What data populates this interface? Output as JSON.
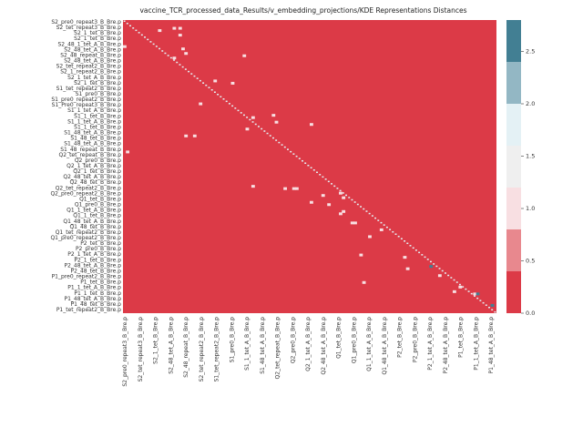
{
  "chart_data": {
    "type": "heatmap",
    "title": "vaccine_TCR_processed_data_Results/v_embedding_projections/KDE Representations Distances",
    "n": 100,
    "row_labels_visible": [
      "S2_pre0_repeat3_B_Bre.p",
      "S2_tet_repeat3_B_Bre.p",
      "S2_1_tet_B_Bre.p",
      "S2_1_tet_B_Bre.p",
      "S2_48_1_tet_A_B_Bre.p",
      "S2_48_tet_A_B_Bre.p",
      "S2_48_repeat_B_Bre.p",
      "S2_48_tet_A_B_Bre.p",
      "S2_tet_repeat2_B_Bre.p",
      "S2_1_repeat2_B_Bre.p",
      "S2_1_tet_A_B_Bre.p",
      "S2_1_tet_B_Bre.p",
      "S1_tet_repeat2_B_Bre.p",
      "S1_pre0_B_Bre.p",
      "S1_pre0_repeat2_B_Bre.p",
      "S1_Pre0_repeat3_B_Bre.p",
      "S1_1_tet_A_B_Bre.p",
      "S1_1_tet_B_Bre.p",
      "S1_1_tet_A_B_Bre.p",
      "S1_1_tet_B_Bre.p",
      "S1_48_tet_A_B_Bre.p",
      "S1_48_tet_B_Bre.p",
      "S1_48_tet_A_B_Bre.p",
      "S1_48_repeat_B_Bre.p",
      "Q2_tet_repeat_B_Bre.p",
      "Q2_pre0_B_Bre.p",
      "Q2_1_tet_A_B_Bre.p",
      "Q2_1_tet_B_Bre.p",
      "Q2_48_tet_A_B_Bre.p",
      "Q2_48_tet_B_Bre.p",
      "Q2_tet_repeat2_B_Bre.p",
      "Q2_pre0_repeat2_B_Bre.p",
      "Q1_tet_B_Bre.p",
      "Q1_pre0_B_Bre.p",
      "Q1_1_tet_A_B_Bre.p",
      "Q1_1_tet_B_Bre.p",
      "Q1_48_tet_A_B_Bre.p",
      "Q1_48_tet_B_Bre.p",
      "Q1_tet_repeat2_B_Bre.p",
      "Q1_pre0_repeat2_B_Bre.p",
      "P2_tet_B_Bre.p",
      "P2_pre0_B_Bre.p",
      "P2_1_tet_A_B_Bre.p",
      "P2_1_tet_B_Bre.p",
      "P2_48_tet_A_B_Bre.p",
      "P2_48_tet_B_Bre.p",
      "P1_pre0_repeat2_B_Bre.p",
      "P1_tet_B_Bre.p",
      "P1_1_tet_A_B_Bre.p",
      "P1_1_tet_B_Bre.p",
      "P1_48_tet_A_B_Bre.p",
      "P1_48_tet_B_Bre.p",
      "P1_tet_repeat2_B_Bre.p"
    ],
    "column_labels_visible": [
      "S2_pre0_repeat3_B_Bre.p",
      "S2_tet_repeat3_B_Bre.p",
      "S2_1_tet_B_Bre.p",
      "S2_48_tet_A_B_Bre.p",
      "S2_48_repeat_B_Bre.p",
      "S2_tet_repeat2_B_Bre.p",
      "S1_tet_repeat2_B_Bre.p",
      "S1_pre0_B_Bre.p",
      "S1_1_tet_A_B_Bre.p",
      "S1_48_tet_A_B_Bre.p",
      "Q2_tet_repeat_B_Bre.p",
      "Q2_pre0_B_Bre.p",
      "Q2_1_tet_A_B_Bre.p",
      "Q2_48_tet_A_B_Bre.p",
      "Q1_tet_B_Bre.p",
      "Q1_pre0_B_Bre.p",
      "Q1_1_tet_A_B_Bre.p",
      "Q1_48_tet_A_B_Bre.p",
      "P2_tet_B_Bre.p",
      "P2_pre0_B_Bre.p",
      "P2_1_tet_A_B_Bre.p",
      "P2_48_tet_A_B_Bre.p",
      "P1_tet_B_Bre.p",
      "P1_1_tet_A_B_Bre.p",
      "P1_48_tet_A_B_Bre.p"
    ],
    "base_value": 0.1,
    "diagonal_value": 1.7,
    "highlights": [
      {
        "row": 3,
        "col": 17,
        "value": 0.8
      },
      {
        "row": 3,
        "col": 19,
        "value": 0.8
      },
      {
        "row": 4,
        "col": 12,
        "value": 0.8
      },
      {
        "row": 6,
        "col": 19,
        "value": 0.8
      },
      {
        "row": 11,
        "col": 0,
        "value": 0.8
      },
      {
        "row": 12,
        "col": 20,
        "value": 0.8
      },
      {
        "row": 14,
        "col": 21,
        "value": 0.8
      },
      {
        "row": 16,
        "col": 17,
        "value": 0.8
      },
      {
        "row": 15,
        "col": 41,
        "value": 0.8
      },
      {
        "row": 26,
        "col": 31,
        "value": 0.8
      },
      {
        "row": 27,
        "col": 37,
        "value": 0.8
      },
      {
        "row": 36,
        "col": 26,
        "value": 0.8
      },
      {
        "row": 41,
        "col": 51,
        "value": 0.8
      },
      {
        "row": 42,
        "col": 44,
        "value": 0.8
      },
      {
        "row": 44,
        "col": 52,
        "value": 0.8
      },
      {
        "row": 45,
        "col": 64,
        "value": 0.8
      },
      {
        "row": 47,
        "col": 42,
        "value": 0.8
      },
      {
        "row": 50,
        "col": 24,
        "value": 0.8
      },
      {
        "row": 50,
        "col": 21,
        "value": 0.8
      },
      {
        "row": 57,
        "col": 1,
        "value": 0.8
      },
      {
        "row": 72,
        "col": 44,
        "value": 0.8
      },
      {
        "row": 73,
        "col": 55,
        "value": 0.8
      },
      {
        "row": 73,
        "col": 58,
        "value": 0.8
      },
      {
        "row": 73,
        "col": 59,
        "value": 0.8
      },
      {
        "row": 75,
        "col": 74,
        "value": 0.8
      },
      {
        "row": 76,
        "col": 68,
        "value": 0.8
      },
      {
        "row": 77,
        "col": 75,
        "value": 0.8
      },
      {
        "row": 79,
        "col": 64,
        "value": 0.8
      },
      {
        "row": 80,
        "col": 70,
        "value": 0.8
      },
      {
        "row": 83,
        "col": 75,
        "value": 0.8
      },
      {
        "row": 84,
        "col": 74,
        "value": 0.8
      },
      {
        "row": 88,
        "col": 78,
        "value": 0.8
      },
      {
        "row": 88,
        "col": 79,
        "value": 0.8
      },
      {
        "row": 91,
        "col": 88,
        "value": 0.8
      },
      {
        "row": 94,
        "col": 84,
        "value": 0.8
      },
      {
        "row": 102,
        "col": 81,
        "value": 0.8
      },
      {
        "row": 103,
        "col": 96,
        "value": 0.8
      },
      {
        "row": 108,
        "col": 97,
        "value": 0.8
      },
      {
        "row": 111,
        "col": 108,
        "value": 0.8
      },
      {
        "row": 114,
        "col": 82,
        "value": 0.8
      },
      {
        "row": 116,
        "col": 115,
        "value": 0.8
      },
      {
        "row": 118,
        "col": 113,
        "value": 0.8
      },
      {
        "row": 119,
        "col": 120,
        "value": 0.8
      },
      {
        "row": 107,
        "col": 105,
        "value": 2.4
      },
      {
        "row": 119,
        "col": 121,
        "value": 2.4
      },
      {
        "row": 124,
        "col": 126,
        "value": 2.4
      }
    ],
    "color_boundaries": [
      0.0,
      0.4,
      0.8,
      1.2,
      1.6,
      2.0,
      2.4,
      2.8
    ],
    "colors": [
      "#dc3a47",
      "#e8888e",
      "#f8dfe2",
      "#efefef",
      "#e4f1f5",
      "#93b7c4",
      "#427f93"
    ],
    "colorbar_ticks": [
      "0.0",
      "0.5",
      "1.0",
      "1.5",
      "2.0",
      "2.5"
    ],
    "colorbar_tick_values": [
      0.0,
      0.5,
      1.0,
      1.5,
      2.0,
      2.5
    ],
    "colorbar_range": [
      0.0,
      2.8
    ]
  }
}
